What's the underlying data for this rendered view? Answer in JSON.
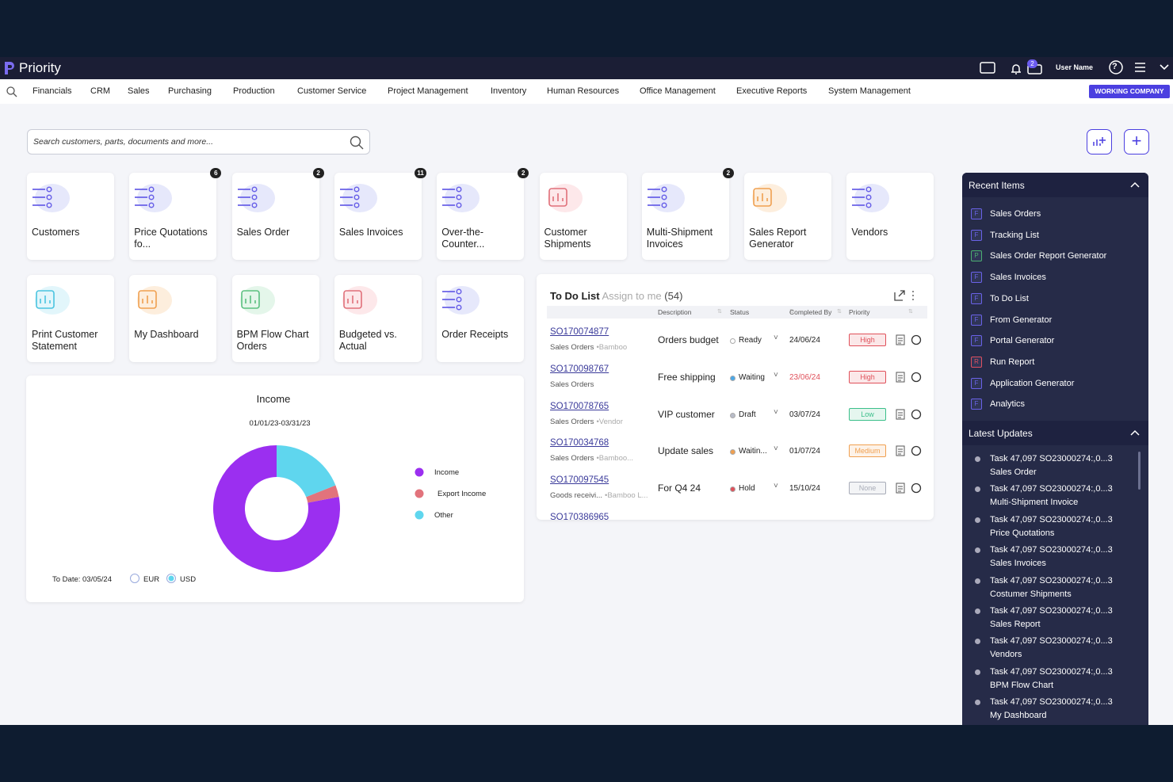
{
  "header": {
    "brand": "Priority",
    "badge": "2",
    "user": "User Name"
  },
  "nav": {
    "items": [
      "Financials",
      "CRM",
      "Sales",
      "Purchasing",
      "Production",
      "Customer Service",
      "Project Management",
      "Inventory",
      "Human Resources",
      "Office Management",
      "Executive Reports",
      "System Management"
    ],
    "company": "WORKING COMPANY"
  },
  "search": {
    "placeholder": "Search customers, parts, documents and more..."
  },
  "tiles": [
    {
      "label": "Customers"
    },
    {
      "label": "Price Quotations fo...",
      "badge": "6"
    },
    {
      "label": "Sales Order",
      "badge": "2"
    },
    {
      "label": "Sales Invoices",
      "badge": "11"
    },
    {
      "label": "Over-the-Counter...",
      "badge": "2"
    },
    {
      "label": "Customer Shipments"
    },
    {
      "label": "Multi-Shipment Invoices",
      "badge": "2"
    },
    {
      "label": "Sales Report Generator"
    },
    {
      "label": "Vendors"
    },
    {
      "label": "Print Customer Statement"
    },
    {
      "label": "My Dashboard"
    },
    {
      "label": "BPM Flow Chart Orders"
    },
    {
      "label": "Budgeted vs. Actual"
    },
    {
      "label": "Order Receipts"
    }
  ],
  "chart_data": {
    "type": "pie",
    "title": "Income",
    "subtitle": "01/01/23-03/31/23",
    "categories": [
      "Income",
      "Export Income",
      "Other"
    ],
    "values": [
      78,
      3,
      19
    ],
    "colors": [
      "#9b2ff0",
      "#e2737c",
      "#5fd6ee"
    ],
    "date_label": "To Date: 03/05/24",
    "currencies": [
      "EUR",
      "USD"
    ],
    "selected": 1
  },
  "todo": {
    "title": "To Do List",
    "assign": "Assign to me",
    "count": "(54)",
    "columns": [
      "Description",
      "Status",
      "Completed By",
      "Priority"
    ],
    "rows": [
      {
        "id": "SO170074877",
        "sub": "Sales Orders",
        "extra": "•Bamboo",
        "description": "Orders budget",
        "status": "Ready",
        "status_color": "#ffffff",
        "date": "24/06/24",
        "priority": "High",
        "priority_color": "#e0505a"
      },
      {
        "id": "SO170098767",
        "sub": "Sales Orders",
        "description": "Free shipping",
        "status": "Waiting",
        "status_color": "#4aa8e8",
        "date": "23/06/24",
        "date_color": "#e0505a",
        "priority": "High",
        "priority_color": "#e0505a"
      },
      {
        "id": "SO170078765",
        "sub": "Sales Orders",
        "extra": "•Vendor",
        "description": "VIP customer",
        "status": "Draft",
        "status_color": "#b8bcc8",
        "date": "03/07/24",
        "priority": "Low",
        "priority_color": "#3bbf8a"
      },
      {
        "id": "SO170034768",
        "sub": "Sales Orders",
        "extra": "•Bamboo...",
        "description": "Update sales",
        "status": "Waitin...",
        "status_color": "#f0a050",
        "date": "01/07/24",
        "priority": "Medium",
        "priority_color": "#f0a050"
      },
      {
        "id": "SO170097545",
        "sub": "Goods receivi...",
        "extra": "•Bamboo L...",
        "description": "For Q4 24",
        "status": "Hold",
        "status_color": "#e0505a",
        "date": "15/10/24",
        "priority": "None",
        "priority_color": "#a8acb8"
      },
      {
        "id": "SO170386965"
      }
    ]
  },
  "recent": {
    "title": "Recent Items",
    "items": [
      {
        "kind": "F",
        "label": "Sales Orders"
      },
      {
        "kind": "F",
        "label": "Tracking List"
      },
      {
        "kind": "P",
        "label": "Sales Order Report Generator"
      },
      {
        "kind": "F",
        "label": "Sales Invoices"
      },
      {
        "kind": "F",
        "label": "To Do List"
      },
      {
        "kind": "F",
        "label": "From Generator"
      },
      {
        "kind": "F",
        "label": "Portal Generator"
      },
      {
        "kind": "R",
        "label": "Run Report"
      },
      {
        "kind": "F",
        "label": "Application Generator"
      },
      {
        "kind": "F",
        "label": "Analytics"
      }
    ]
  },
  "updates": {
    "title": "Latest Updates",
    "items": [
      {
        "task": "Task 47,097 SO23000274:,0...3",
        "label": "Sales Order"
      },
      {
        "task": "Task 47,097 SO23000274:,0...3",
        "label": "Multi-Shipment Invoice"
      },
      {
        "task": "Task 47,097 SO23000274:,0...3",
        "label": "Price Quotations"
      },
      {
        "task": "Task 47,097 SO23000274:,0...3",
        "label": "Sales Invoices"
      },
      {
        "task": "Task 47,097 SO23000274:,0...3",
        "label": "Costumer Shipments"
      },
      {
        "task": "Task 47,097 SO23000274:,0...3",
        "label": "Sales Report"
      },
      {
        "task": "Task 47,097 SO23000274:,0...3",
        "label": "Vendors"
      },
      {
        "task": "Task 47,097 SO23000274:,0...3",
        "label": "BPM Flow Chart"
      },
      {
        "task": "Task 47,097 SO23000274:,0...3",
        "label": "My Dashboard"
      }
    ]
  }
}
